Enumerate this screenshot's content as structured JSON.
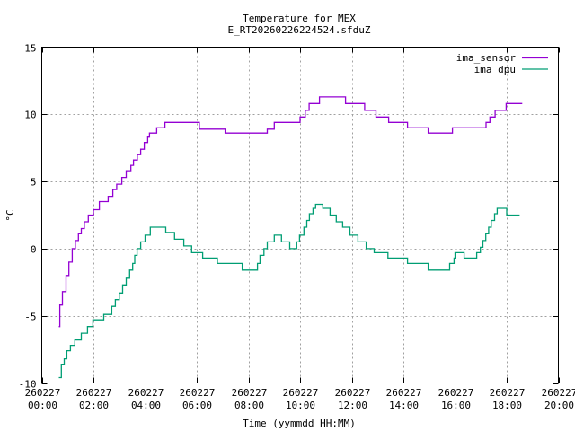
{
  "chart_data": {
    "type": "line",
    "title": [
      "Temperature for MEX",
      "E_RT20260226224524.sfduZ"
    ],
    "xlabel": "Time (yymmdd HH:MM)",
    "ylabel": "°C",
    "xlim_hours": [
      0,
      20
    ],
    "ylim": [
      -10,
      15
    ],
    "grid": true,
    "legend_position": "top-right",
    "x_ticks": [
      {
        "hours": 0,
        "date": "260227",
        "time": "00:00"
      },
      {
        "hours": 2,
        "date": "260227",
        "time": "02:00"
      },
      {
        "hours": 4,
        "date": "260227",
        "time": "04:00"
      },
      {
        "hours": 6,
        "date": "260227",
        "time": "06:00"
      },
      {
        "hours": 8,
        "date": "260227",
        "time": "08:00"
      },
      {
        "hours": 10,
        "date": "260227",
        "time": "10:00"
      },
      {
        "hours": 12,
        "date": "260227",
        "time": "12:00"
      },
      {
        "hours": 14,
        "date": "260227",
        "time": "14:00"
      },
      {
        "hours": 16,
        "date": "260227",
        "time": "16:00"
      },
      {
        "hours": 18,
        "date": "260227",
        "time": "18:00"
      },
      {
        "hours": 20,
        "date": "260227",
        "time": "20:00"
      }
    ],
    "y_ticks": [
      {
        "value": -10,
        "label": "-10"
      },
      {
        "value": -5,
        "label": "-5"
      },
      {
        "value": 0,
        "label": "0"
      },
      {
        "value": 5,
        "label": "5"
      },
      {
        "value": 10,
        "label": "10"
      },
      {
        "value": 15,
        "label": "15"
      }
    ],
    "series": [
      {
        "name": "ima_sensor",
        "color": "#9400d3",
        "points": [
          [
            0.66,
            -5.8
          ],
          [
            0.7,
            -4.2
          ],
          [
            0.8,
            -3.2
          ],
          [
            0.94,
            -2.0
          ],
          [
            1.05,
            -1.0
          ],
          [
            1.18,
            0.0
          ],
          [
            1.3,
            0.6
          ],
          [
            1.42,
            1.1
          ],
          [
            1.53,
            1.5
          ],
          [
            1.65,
            2.0
          ],
          [
            1.8,
            2.5
          ],
          [
            2.0,
            2.9
          ],
          [
            2.23,
            3.5
          ],
          [
            2.57,
            3.9
          ],
          [
            2.75,
            4.4
          ],
          [
            2.9,
            4.8
          ],
          [
            3.1,
            5.3
          ],
          [
            3.27,
            5.8
          ],
          [
            3.45,
            6.2
          ],
          [
            3.55,
            6.6
          ],
          [
            3.7,
            7.0
          ],
          [
            3.83,
            7.4
          ],
          [
            3.97,
            7.9
          ],
          [
            4.1,
            8.3
          ],
          [
            4.17,
            8.6
          ],
          [
            4.45,
            9.0
          ],
          [
            4.77,
            9.4
          ],
          [
            6.1,
            8.9
          ],
          [
            7.1,
            8.6
          ],
          [
            8.73,
            8.9
          ],
          [
            9.0,
            9.4
          ],
          [
            10.0,
            9.8
          ],
          [
            10.2,
            10.3
          ],
          [
            10.35,
            10.8
          ],
          [
            10.75,
            11.3
          ],
          [
            11.76,
            10.8
          ],
          [
            12.5,
            10.3
          ],
          [
            12.94,
            9.8
          ],
          [
            13.43,
            9.4
          ],
          [
            14.16,
            9.0
          ],
          [
            14.96,
            8.6
          ],
          [
            15.9,
            9.0
          ],
          [
            17.2,
            9.4
          ],
          [
            17.35,
            9.8
          ],
          [
            17.55,
            10.3
          ],
          [
            17.98,
            10.8
          ],
          [
            18.6,
            10.8
          ]
        ]
      },
      {
        "name": "ima_dpu",
        "color": "#009e73",
        "points": [
          [
            0.66,
            -9.6
          ],
          [
            0.76,
            -8.6
          ],
          [
            0.87,
            -8.2
          ],
          [
            0.97,
            -7.6
          ],
          [
            1.11,
            -7.2
          ],
          [
            1.28,
            -6.8
          ],
          [
            1.53,
            -6.3
          ],
          [
            1.77,
            -5.8
          ],
          [
            1.98,
            -5.3
          ],
          [
            2.4,
            -4.9
          ],
          [
            2.71,
            -4.3
          ],
          [
            2.85,
            -3.8
          ],
          [
            3.0,
            -3.3
          ],
          [
            3.13,
            -2.7
          ],
          [
            3.27,
            -2.2
          ],
          [
            3.4,
            -1.6
          ],
          [
            3.52,
            -1.1
          ],
          [
            3.6,
            -0.5
          ],
          [
            3.69,
            0.0
          ],
          [
            3.83,
            0.5
          ],
          [
            4.0,
            1.0
          ],
          [
            4.2,
            1.6
          ],
          [
            4.8,
            1.2
          ],
          [
            5.14,
            0.7
          ],
          [
            5.5,
            0.2
          ],
          [
            5.8,
            -0.3
          ],
          [
            6.23,
            -0.7
          ],
          [
            6.8,
            -1.1
          ],
          [
            7.76,
            -1.6
          ],
          [
            8.35,
            -1.1
          ],
          [
            8.45,
            -0.5
          ],
          [
            8.6,
            0.0
          ],
          [
            8.73,
            0.5
          ],
          [
            9.0,
            1.0
          ],
          [
            9.28,
            0.5
          ],
          [
            9.6,
            0.0
          ],
          [
            9.87,
            0.5
          ],
          [
            9.98,
            1.0
          ],
          [
            10.15,
            1.6
          ],
          [
            10.26,
            2.1
          ],
          [
            10.36,
            2.6
          ],
          [
            10.5,
            3.0
          ],
          [
            10.6,
            3.3
          ],
          [
            10.88,
            3.0
          ],
          [
            11.16,
            2.5
          ],
          [
            11.4,
            2.0
          ],
          [
            11.65,
            1.6
          ],
          [
            11.93,
            1.0
          ],
          [
            12.24,
            0.5
          ],
          [
            12.56,
            0.0
          ],
          [
            12.87,
            -0.3
          ],
          [
            13.4,
            -0.7
          ],
          [
            14.16,
            -1.1
          ],
          [
            14.96,
            -1.6
          ],
          [
            15.79,
            -1.1
          ],
          [
            15.96,
            -0.7
          ],
          [
            16.0,
            -0.3
          ],
          [
            16.35,
            -0.7
          ],
          [
            16.84,
            -0.3
          ],
          [
            16.98,
            0.1
          ],
          [
            17.08,
            0.6
          ],
          [
            17.19,
            1.1
          ],
          [
            17.3,
            1.6
          ],
          [
            17.4,
            2.1
          ],
          [
            17.53,
            2.6
          ],
          [
            17.63,
            3.0
          ],
          [
            18.0,
            2.5
          ],
          [
            18.5,
            2.5
          ]
        ]
      }
    ]
  }
}
